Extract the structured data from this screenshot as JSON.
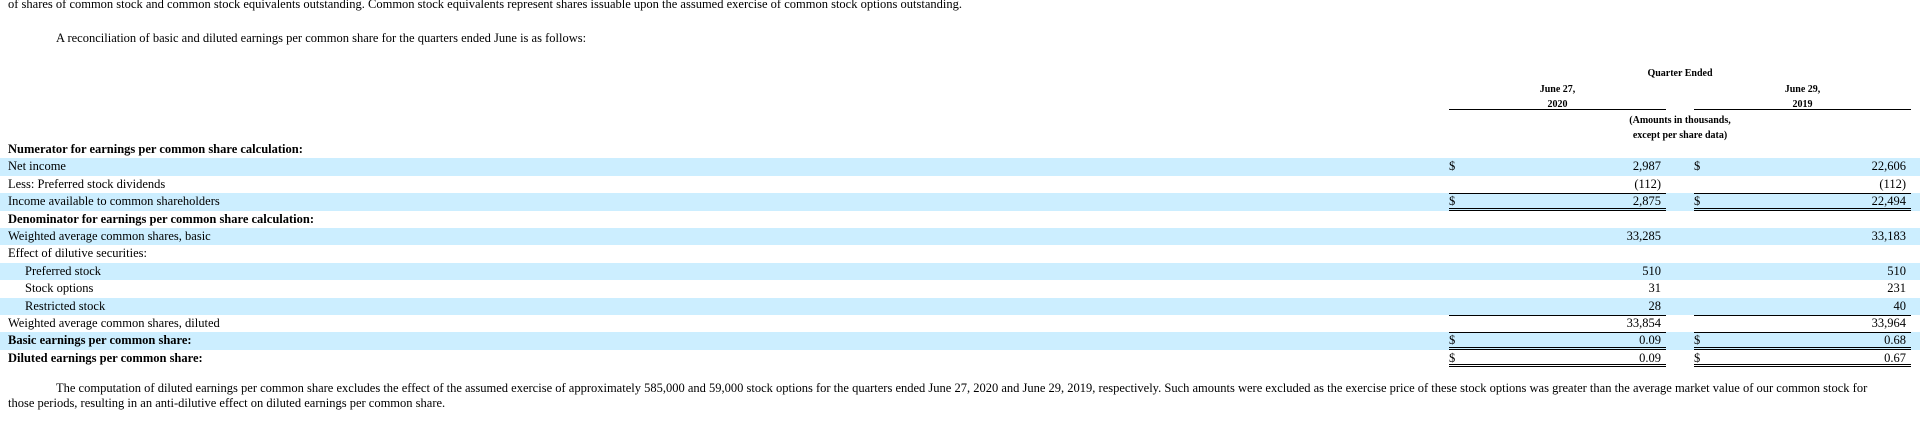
{
  "top_text": "of shares of common stock and common stock equivalents outstanding. Common stock equivalents represent shares issuable upon the assumed exercise of common stock options outstanding.",
  "intro": "A reconciliation of basic and diluted earnings per common share for the quarters ended June is as follows:",
  "header": {
    "quarter_ended": "Quarter Ended",
    "col1_line1": "June 27,",
    "col1_line2": "2020",
    "col2_line1": "June 29,",
    "col2_line2": "2019",
    "amounts_line1": "(Amounts in thousands,",
    "amounts_line2": "except per share data)"
  },
  "rows": [
    {
      "label": "Numerator for earnings per common share calculation:",
      "c1_cur": "",
      "c1": "",
      "c2_cur": "",
      "c2": ""
    },
    {
      "label": "Net income",
      "c1_cur": "$",
      "c1": "2,987",
      "c2_cur": "$",
      "c2": "22,606"
    },
    {
      "label": "Less: Preferred stock dividends",
      "c1_cur": "",
      "c1": "(112)",
      "c2_cur": "",
      "c2": "(112)"
    },
    {
      "label": "Income available to common shareholders",
      "c1_cur": "$",
      "c1": "2,875",
      "c2_cur": "$",
      "c2": "22,494"
    },
    {
      "label": "Denominator for earnings per common share calculation:",
      "c1_cur": "",
      "c1": "",
      "c2_cur": "",
      "c2": ""
    },
    {
      "label": "Weighted average common shares, basic",
      "c1_cur": "",
      "c1": "33,285",
      "c2_cur": "",
      "c2": "33,183"
    },
    {
      "label": "Effect of dilutive securities:",
      "c1_cur": "",
      "c1": "",
      "c2_cur": "",
      "c2": ""
    },
    {
      "label": "Preferred stock",
      "c1_cur": "",
      "c1": "510",
      "c2_cur": "",
      "c2": "510"
    },
    {
      "label": "Stock options",
      "c1_cur": "",
      "c1": "31",
      "c2_cur": "",
      "c2": "231"
    },
    {
      "label": "Restricted stock",
      "c1_cur": "",
      "c1": "28",
      "c2_cur": "",
      "c2": "40"
    },
    {
      "label": "Weighted average common shares, diluted",
      "c1_cur": "",
      "c1": "33,854",
      "c2_cur": "",
      "c2": "33,964"
    },
    {
      "label": "Basic earnings per common share:",
      "c1_cur": "$",
      "c1": "0.09",
      "c2_cur": "$",
      "c2": "0.68"
    },
    {
      "label": "Diluted earnings per common share:",
      "c1_cur": "$",
      "c1": "0.09",
      "c2_cur": "$",
      "c2": "0.67"
    }
  ],
  "note": "The computation of diluted earnings per common share excludes the effect of the assumed exercise of approximately 585,000 and 59,000 stock options for the quarters ended June 27, 2020 and June 29, 2019, respectively. Such amounts were excluded as the exercise price of these stock options was greater than the average market value of our common stock for those periods, resulting in an anti-dilutive effect on diluted earnings per common share."
}
